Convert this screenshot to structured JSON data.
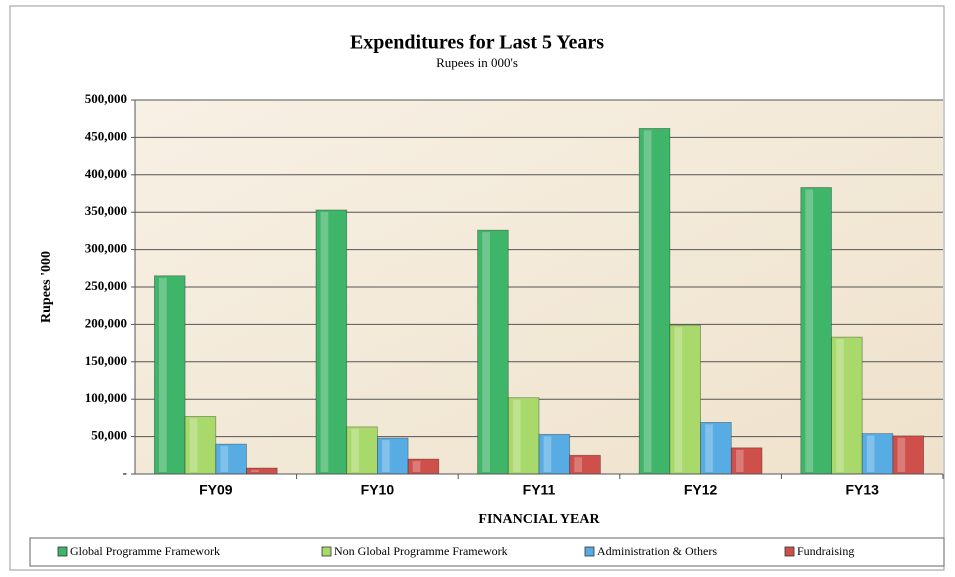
{
  "chart_data": {
    "type": "bar",
    "title": "Expenditures for Last 5 Years",
    "subtitle": "Rupees in 000's",
    "y_label": "Rupees '000",
    "x_label": "FINANCIAL YEAR",
    "categories": [
      "FY09",
      "FY10",
      "FY11",
      "FY12",
      "FY13"
    ],
    "series": [
      {
        "name": "Global Programme Framework",
        "color": "#3fb56a",
        "values": [
          265000,
          353000,
          326000,
          462000,
          383000
        ]
      },
      {
        "name": "Non Global Programme Framework",
        "color": "#a9d86b",
        "values": [
          77000,
          63000,
          102000,
          199000,
          183000
        ]
      },
      {
        "name": "Administration & Others",
        "color": "#57ade3",
        "values": [
          40000,
          48000,
          53000,
          69000,
          54000
        ]
      },
      {
        "name": "Fundraising",
        "color": "#cf4f4b",
        "values": [
          8000,
          20000,
          25000,
          35000,
          51000
        ]
      }
    ],
    "ylim": [
      0,
      500000
    ],
    "yticks": [
      {
        "value": 0,
        "label": "-"
      },
      {
        "value": 50000,
        "label": "50,000"
      },
      {
        "value": 100000,
        "label": "100,000"
      },
      {
        "value": 150000,
        "label": "150,000"
      },
      {
        "value": 200000,
        "label": "200,000"
      },
      {
        "value": 250000,
        "label": "250,000"
      },
      {
        "value": 300000,
        "label": "300,000"
      },
      {
        "value": 350000,
        "label": "350,000"
      },
      {
        "value": 400000,
        "label": "400,000"
      },
      {
        "value": 450000,
        "label": "450,000"
      },
      {
        "value": {
          "value": 500000
        },
        "label": "500,000"
      }
    ],
    "grid": true
  }
}
